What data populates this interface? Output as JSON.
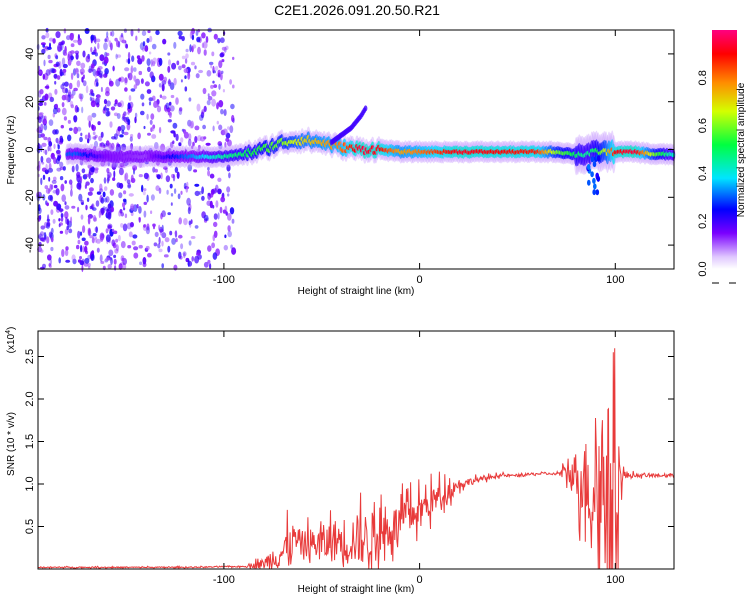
{
  "title": "C2E1.2026.091.20.50.R21",
  "chart_data": [
    {
      "type": "heatmap",
      "xlabel": "Height of straight line (km)",
      "ylabel": "Frequency (Hz)",
      "xlim": [
        -195,
        130
      ],
      "ylim": [
        -50,
        50
      ],
      "xticks": [
        "-100",
        "0",
        "100"
      ],
      "xtick_values": [
        -100,
        0,
        100
      ],
      "yticks": [
        "40",
        "20",
        "0",
        "-20",
        "-40"
      ],
      "ytick_values": [
        40,
        20,
        0,
        -20,
        -40
      ],
      "colorbar": {
        "label": "Normalized spectral amplitude",
        "range": [
          0,
          1
        ],
        "ticks": [
          "0.0",
          "0.2",
          "0.4",
          "0.6",
          "0.8"
        ],
        "tick_values": [
          0.0,
          0.2,
          0.4,
          0.6,
          0.8
        ]
      },
      "ridge": {
        "x": [
          -175,
          -160,
          -140,
          -120,
          -100,
          -90,
          -80,
          -70,
          -60,
          -50,
          -40,
          -30,
          -20,
          -10,
          0,
          20,
          40,
          60,
          70,
          80,
          85,
          90,
          95,
          100,
          110,
          120,
          130
        ],
        "freq": [
          -2,
          -3,
          -3,
          -3,
          -3,
          -2,
          0,
          3,
          4,
          3,
          1,
          0,
          0,
          -1,
          -1,
          -1,
          -1,
          -1,
          -1,
          -2,
          -2,
          -1,
          -1,
          -1,
          -1,
          -2,
          -2
        ],
        "amplitude": [
          0.3,
          0.15,
          0.12,
          0.3,
          0.45,
          0.5,
          0.55,
          0.6,
          0.7,
          0.75,
          0.8,
          0.95,
          0.9,
          0.75,
          0.8,
          0.92,
          0.9,
          0.88,
          0.6,
          0.5,
          0.45,
          0.5,
          0.65,
          0.9,
          0.95,
          0.6,
          0.4
        ]
      },
      "branch": {
        "x": [
          -45,
          -40,
          -35,
          -30,
          -27
        ],
        "freq": [
          3,
          6,
          9,
          14,
          18
        ]
      }
    },
    {
      "type": "line",
      "xlabel": "Height of straight line (km)",
      "ylabel": "SNR (10 * v/v)",
      "multiplier_label": "(x10",
      "multiplier_exp": "4",
      "xlim": [
        -195,
        130
      ],
      "ylim": [
        0,
        2.8
      ],
      "xticks": [
        "-100",
        "0",
        "100"
      ],
      "xtick_values": [
        -100,
        0,
        100
      ],
      "yticks": [
        "0.5",
        "1.0",
        "1.5",
        "2.0",
        "2.5"
      ],
      "ytick_values": [
        0.5,
        1.0,
        1.5,
        2.0,
        2.5
      ],
      "color": "#e83a3a",
      "series": {
        "x": [
          -195,
          -160,
          -120,
          -90,
          -80,
          -70,
          -65,
          -60,
          -50,
          -40,
          -30,
          -20,
          -10,
          0,
          10,
          20,
          30,
          40,
          50,
          60,
          70,
          75,
          80,
          85,
          90,
          95,
          100,
          105,
          110,
          120,
          130
        ],
        "y": [
          0.02,
          0.02,
          0.02,
          0.03,
          0.06,
          0.2,
          0.35,
          0.3,
          0.3,
          0.35,
          0.35,
          0.42,
          0.55,
          0.7,
          0.85,
          1.0,
          1.05,
          1.1,
          1.1,
          1.12,
          1.12,
          1.13,
          1.1,
          1.05,
          0.9,
          1.0,
          1.08,
          1.1,
          1.1,
          1.1,
          1.1
        ]
      },
      "noise": {
        "x": [
          -195,
          -90,
          -80,
          -70,
          -60,
          -50,
          -40,
          -30,
          -20,
          -10,
          0,
          10,
          20,
          30,
          40,
          70,
          75,
          80,
          85,
          90,
          95,
          100,
          105,
          110,
          130
        ],
        "amp": [
          0.01,
          0.01,
          0.1,
          0.35,
          0.25,
          0.35,
          0.45,
          0.5,
          0.45,
          0.35,
          0.3,
          0.25,
          0.1,
          0.05,
          0.03,
          0.02,
          0.15,
          0.5,
          0.8,
          1.2,
          1.7,
          1.2,
          0.1,
          0.03,
          0.03
        ]
      }
    }
  ]
}
